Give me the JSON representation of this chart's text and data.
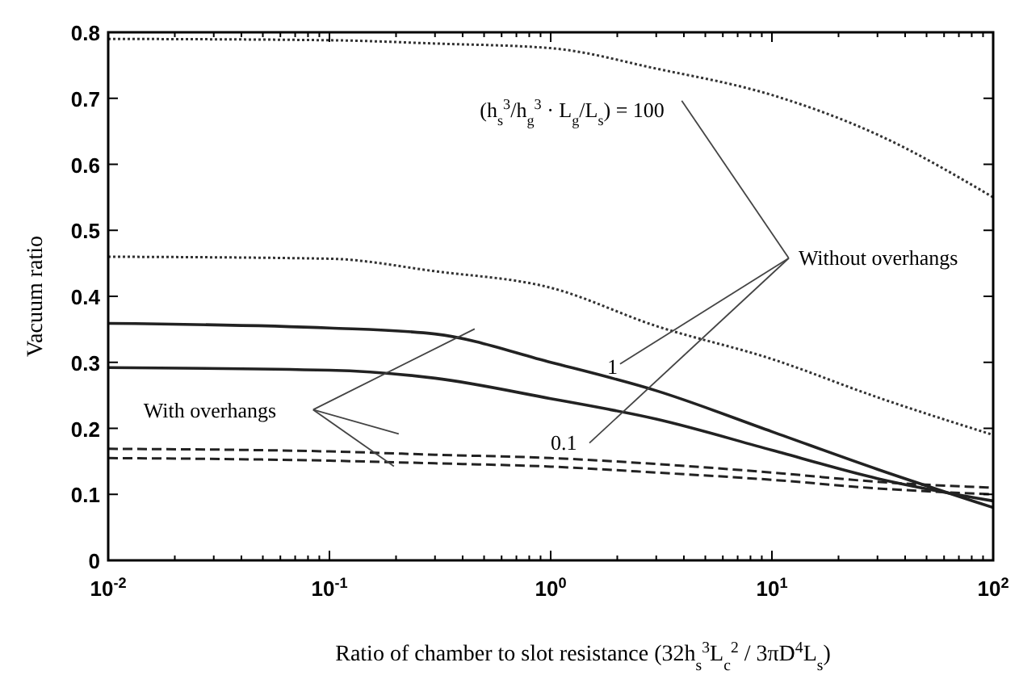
{
  "chart_data": {
    "type": "line",
    "xlabel": "Ratio of chamber to slot resistance (32h$_{s}$$^{3}$L$_{c}$$^{2}$ / 3πD$^{4}$L$_{s}$)",
    "ylabel": "Vacuum ratio",
    "log": "x",
    "grid": false,
    "xlim": [
      0.01,
      100
    ],
    "ylim": [
      0,
      0.8
    ],
    "xticks": [
      {
        "value": 0.01,
        "label": "10$^{-2}$"
      },
      {
        "value": 0.02,
        "label": null
      },
      {
        "value": 0.03,
        "label": null
      },
      {
        "value": 0.04,
        "label": null
      },
      {
        "value": 0.05,
        "label": null
      },
      {
        "value": 0.06,
        "label": null
      },
      {
        "value": 0.07,
        "label": null
      },
      {
        "value": 0.08,
        "label": null
      },
      {
        "value": 0.09,
        "label": null
      },
      {
        "value": 0.1,
        "label": "10$^{-1}$"
      },
      {
        "value": 0.2,
        "label": null
      },
      {
        "value": 0.3,
        "label": null
      },
      {
        "value": 0.4,
        "label": null
      },
      {
        "value": 0.5,
        "label": null
      },
      {
        "value": 0.6,
        "label": null
      },
      {
        "value": 0.7,
        "label": null
      },
      {
        "value": 0.8,
        "label": null
      },
      {
        "value": 0.9,
        "label": null
      },
      {
        "value": 1,
        "label": "10$^{0}$"
      },
      {
        "value": 2,
        "label": null
      },
      {
        "value": 3,
        "label": null
      },
      {
        "value": 4,
        "label": null
      },
      {
        "value": 5,
        "label": null
      },
      {
        "value": 6,
        "label": null
      },
      {
        "value": 7,
        "label": null
      },
      {
        "value": 8,
        "label": null
      },
      {
        "value": 9,
        "label": null
      },
      {
        "value": 10,
        "label": "10$^{1}$"
      },
      {
        "value": 20,
        "label": null
      },
      {
        "value": 30,
        "label": null
      },
      {
        "value": 40,
        "label": null
      },
      {
        "value": 50,
        "label": null
      },
      {
        "value": 60,
        "label": null
      },
      {
        "value": 70,
        "label": null
      },
      {
        "value": 80,
        "label": null
      },
      {
        "value": 90,
        "label": null
      },
      {
        "value": 100,
        "label": "10$^{2}$"
      }
    ],
    "yticks": [
      0,
      0.1,
      0.2,
      0.3,
      0.4,
      0.5,
      0.6,
      0.7,
      0.8
    ],
    "x": [
      0.01,
      0.1,
      0.3,
      1,
      3,
      10,
      30,
      100
    ],
    "series": [
      {
        "color": "#333333",
        "line_style": "dotted",
        "values": [
          0.79,
          0.788,
          0.783,
          0.776,
          0.745,
          0.705,
          0.645,
          0.55
        ]
      },
      {
        "color": "#333333",
        "line_style": "dotted",
        "values": [
          0.46,
          0.457,
          0.438,
          0.413,
          0.355,
          0.305,
          0.247,
          0.19
        ]
      },
      {
        "color": "#222222",
        "line_style": "solid",
        "values": [
          0.359,
          0.352,
          0.343,
          0.3,
          0.257,
          0.195,
          0.138,
          0.08
        ]
      },
      {
        "color": "#222222",
        "line_style": "solid",
        "values": [
          0.292,
          0.288,
          0.276,
          0.245,
          0.214,
          0.167,
          0.124,
          0.09
        ]
      },
      {
        "color": "#222222",
        "line_style": "dashed",
        "values": [
          0.169,
          0.165,
          0.16,
          0.155,
          0.146,
          0.133,
          0.119,
          0.11
        ]
      },
      {
        "color": "#222222",
        "line_style": "dashed",
        "values": [
          0.155,
          0.151,
          0.147,
          0.142,
          0.133,
          0.122,
          0.109,
          0.1
        ]
      }
    ],
    "annotations": [
      "(h$_{s}$$^{3}$/h$_{g}$$^{3}$ · L$_{g}$/L$_{s}$) = 100",
      "Without overhangs",
      "With overhangs",
      {
        "text": "1",
        "x": 1.8,
        "y": 0.283
      },
      {
        "text": "0.1",
        "x": 1.0,
        "y": 0.168
      }
    ]
  }
}
